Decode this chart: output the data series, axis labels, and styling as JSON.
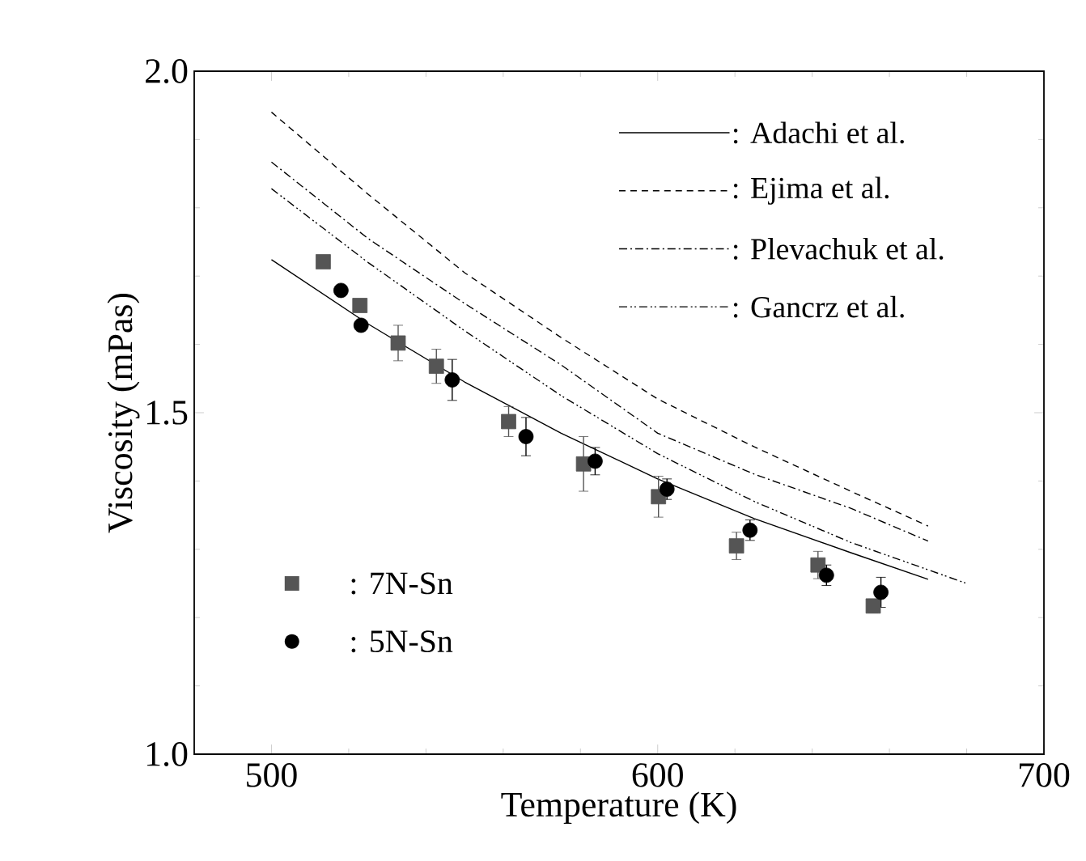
{
  "chart_data": {
    "type": "scatter",
    "xlabel": "Temperature (K)",
    "ylabel": "Viscosity (mPas)",
    "xlim": [
      480,
      700
    ],
    "ylim": [
      1.0,
      2.0
    ],
    "xticks": [
      500,
      600,
      700
    ],
    "yticks": [
      {
        "value": 1.0,
        "label": "1.0"
      },
      {
        "value": 1.5,
        "label": "1.5"
      },
      {
        "value": 2.0,
        "label": "2.0"
      }
    ],
    "legend": "top right",
    "series": [
      {
        "name": ": Adachi et al.",
        "type": "line",
        "color": "#000000",
        "line_style": "solid",
        "x": [
          500,
          525,
          550,
          575,
          600,
          625,
          650,
          670
        ],
        "values": [
          1.724,
          1.63,
          1.545,
          1.47,
          1.403,
          1.345,
          1.295,
          1.256
        ]
      },
      {
        "name": ": Ejima et al.",
        "type": "line",
        "color": "#000000",
        "line_style": "dashed",
        "x": [
          500,
          525,
          550,
          575,
          600,
          625,
          650,
          670
        ],
        "values": [
          1.94,
          1.82,
          1.705,
          1.61,
          1.52,
          1.45,
          1.385,
          1.334
        ]
      },
      {
        "name": ": Plevachuk et al.",
        "type": "line",
        "color": "#000000",
        "line_style": "dashdotted",
        "x": [
          500,
          525,
          550,
          575,
          600,
          625,
          650,
          670
        ],
        "values": [
          1.867,
          1.755,
          1.66,
          1.57,
          1.47,
          1.41,
          1.36,
          1.312
        ]
      },
      {
        "name": ": Gancrz et al.",
        "type": "line",
        "color": "#000000",
        "line_style": "dashdotdotted",
        "x": [
          500,
          525,
          550,
          575,
          600,
          625,
          650,
          680
        ],
        "values": [
          1.828,
          1.72,
          1.62,
          1.525,
          1.44,
          1.37,
          1.31,
          1.25
        ]
      },
      {
        "name": ": 7N-Sn",
        "color": "#555555",
        "marker": "square",
        "x": [
          513.4,
          522.9,
          532.8,
          542.7,
          561.4,
          580.8,
          600.2,
          620.4,
          641.5,
          655.8
        ],
        "values": [
          1.721,
          1.657,
          1.602,
          1.568,
          1.487,
          1.425,
          1.377,
          1.305,
          1.277,
          1.217
        ],
        "errors": [
          null,
          null,
          0.026,
          0.025,
          0.022,
          0.04,
          0.03,
          0.02,
          0.02,
          0.01
        ]
      },
      {
        "name": ": 5N-Sn",
        "color": "#000000",
        "marker": "circle",
        "x": [
          518.0,
          523.2,
          546.8,
          565.9,
          583.8,
          602.4,
          623.9,
          643.7,
          657.8
        ],
        "values": [
          1.679,
          1.628,
          1.548,
          1.465,
          1.429,
          1.388,
          1.328,
          1.262,
          1.237
        ],
        "errors": [
          null,
          null,
          0.03,
          0.028,
          0.02,
          0.015,
          0.015,
          0.015,
          0.022
        ]
      }
    ]
  }
}
